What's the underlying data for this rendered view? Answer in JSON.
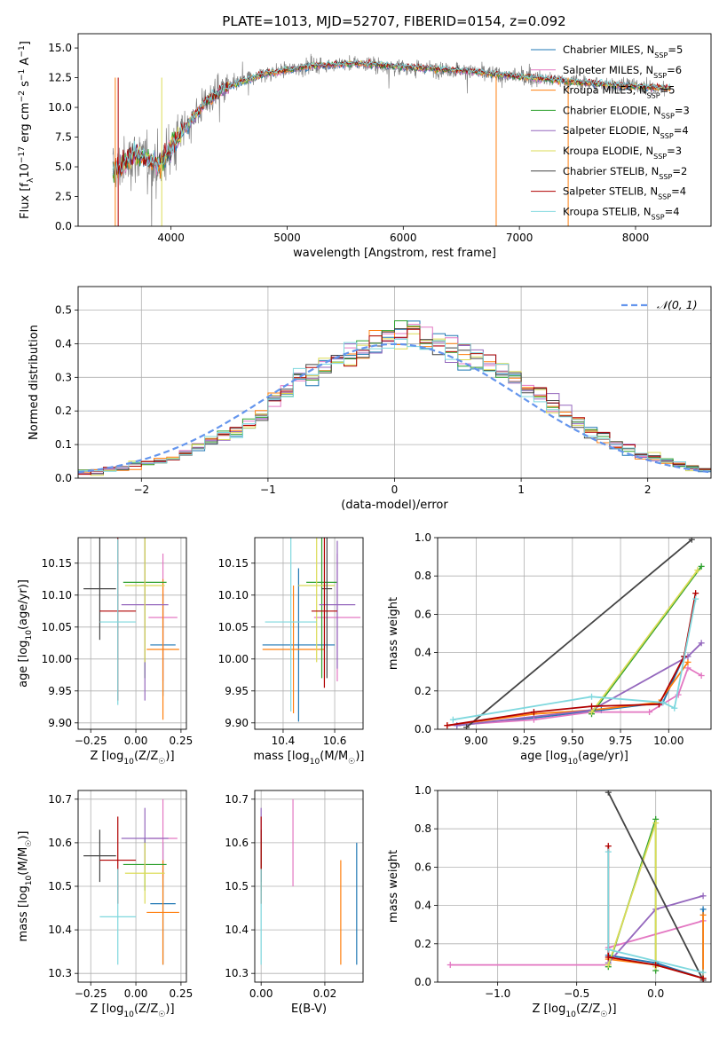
{
  "figure_title": "PLATE=1013, MJD=52707, FIBERID=0154, z=0.092",
  "colors": {
    "chabrier_miles": "#1f77b4",
    "salpeter_miles": "#e377c2",
    "kroupa_miles": "#ff7f0e",
    "chabrier_elodie": "#2ca02c",
    "salpeter_elodie": "#9467bd",
    "kroupa_elodie": "#dbdb56",
    "chabrier_stelib": "#444444",
    "salpeter_stelib": "#b00000",
    "kroupa_stelib": "#7fd8de",
    "data": "#808080",
    "normal": "#6495ed"
  },
  "chart_data": [
    {
      "type": "line",
      "title": "PLATE=1013, MJD=52707, FIBERID=0154, z=0.092",
      "xlabel": "wavelength [Angstrom, rest frame]",
      "ylabel": "Flux [f_λ 10^-17 erg cm^-2 s^-1 A^-1]",
      "xlim": [
        3200,
        8650
      ],
      "ylim": [
        0,
        16.2
      ],
      "xticks": [
        4000,
        5000,
        6000,
        7000,
        8000
      ],
      "yticks": [
        0.0,
        2.5,
        5.0,
        7.5,
        10.0,
        12.5,
        15.0
      ],
      "legend": [
        "Chabrier MILES, N_SSP=5",
        "Salpeter MILES, N_SSP=6",
        "Kroupa MILES, N_SSP=5",
        "Chabrier ELODIE, N_SSP=3",
        "Salpeter ELODIE, N_SSP=4",
        "Kroupa ELODIE, N_SSP=3",
        "Chabrier STELIB, N_SSP=2",
        "Salpeter STELIB, N_SSP=4",
        "Kroupa STELIB, N_SSP=4"
      ],
      "legend_position": "right",
      "spectrum_continuum": {
        "wavelength": [
          3500,
          3700,
          3900,
          4100,
          4300,
          4500,
          4800,
          5200,
          5600,
          6000,
          6500,
          7000,
          7400,
          7800,
          8300
        ],
        "flux": [
          4.6,
          6.0,
          5.2,
          8.0,
          10.5,
          11.8,
          12.8,
          13.5,
          13.7,
          13.4,
          13.1,
          12.6,
          12.2,
          11.9,
          11.6
        ]
      }
    },
    {
      "type": "line",
      "xlabel": "(data-model)/error",
      "ylabel": "Normed distribution",
      "xlim": [
        -2.5,
        2.5
      ],
      "ylim": [
        0,
        0.57
      ],
      "xticks": [
        -2,
        -1,
        0,
        1,
        2
      ],
      "yticks": [
        0.0,
        0.1,
        0.2,
        0.3,
        0.4,
        0.5
      ],
      "legend": [
        "N(0,1)"
      ],
      "bin_edges": [
        -2.5,
        -2.4,
        -2.3,
        -2.2,
        -2.1,
        -2.0,
        -1.9,
        -1.8,
        -1.7,
        -1.6,
        -1.5,
        -1.4,
        -1.3,
        -1.2,
        -1.1,
        -1.0,
        -0.9,
        -0.8,
        -0.7,
        -0.6,
        -0.5,
        -0.4,
        -0.3,
        -0.2,
        -0.1,
        0.0,
        0.1,
        0.2,
        0.3,
        0.4,
        0.5,
        0.6,
        0.7,
        0.8,
        0.9,
        1.0,
        1.1,
        1.2,
        1.3,
        1.4,
        1.5,
        1.6,
        1.7,
        1.8,
        1.9,
        2.0,
        2.1,
        2.2,
        2.3,
        2.4,
        2.5
      ],
      "histogram_mean": [
        0.02,
        0.02,
        0.025,
        0.03,
        0.04,
        0.045,
        0.05,
        0.06,
        0.075,
        0.095,
        0.11,
        0.125,
        0.14,
        0.16,
        0.185,
        0.23,
        0.26,
        0.3,
        0.31,
        0.33,
        0.35,
        0.37,
        0.38,
        0.39,
        0.41,
        0.43,
        0.44,
        0.42,
        0.41,
        0.39,
        0.37,
        0.36,
        0.34,
        0.32,
        0.3,
        0.27,
        0.25,
        0.22,
        0.19,
        0.165,
        0.14,
        0.12,
        0.1,
        0.085,
        0.07,
        0.06,
        0.05,
        0.04,
        0.03,
        0.025
      ]
    },
    {
      "type": "scatter",
      "xlabel": "Z [log10(Z/Z☉)]",
      "ylabel": "age [log10(age/yr)]",
      "xlim": [
        -0.32,
        0.28
      ],
      "ylim": [
        9.89,
        10.19
      ],
      "xticks": [
        -0.25,
        0.0,
        0.25
      ],
      "yticks": [
        9.9,
        9.95,
        10.0,
        10.05,
        10.1,
        10.15
      ],
      "points": [
        {
          "series": "Chabrier MILES",
          "x": 0.15,
          "xerr": 0.07,
          "y": 10.022,
          "yerr": 0.08
        },
        {
          "series": "Salpeter MILES",
          "x": 0.15,
          "xerr": 0.08,
          "y": 10.065,
          "yerr": 0.1
        },
        {
          "series": "Kroupa MILES",
          "x": 0.15,
          "xerr": 0.09,
          "y": 10.015,
          "yerr": 0.11
        },
        {
          "series": "Chabrier ELODIE",
          "x": 0.05,
          "xerr": 0.12,
          "y": 10.12,
          "yerr": 0.15
        },
        {
          "series": "Salpeter ELODIE",
          "x": 0.05,
          "xerr": 0.13,
          "y": 10.085,
          "yerr": 0.15
        },
        {
          "series": "Kroupa ELODIE",
          "x": 0.05,
          "xerr": 0.11,
          "y": 10.115,
          "yerr": 0.12
        },
        {
          "series": "Chabrier STELIB",
          "x": -0.2,
          "xerr": 0.09,
          "y": 10.11,
          "yerr": 0.08
        },
        {
          "series": "Salpeter STELIB",
          "x": -0.1,
          "xerr": 0.1,
          "y": 10.075,
          "yerr": 0.14
        },
        {
          "series": "Kroupa STELIB",
          "x": -0.1,
          "xerr": 0.1,
          "y": 10.058,
          "yerr": 0.13
        }
      ]
    },
    {
      "type": "scatter",
      "xlabel": "mass [log10(M/M☉)]",
      "ylabel": "",
      "xlim": [
        10.29,
        10.71
      ],
      "ylim": [
        9.89,
        10.19
      ],
      "xticks": [
        10.4,
        10.6
      ],
      "yticks": [
        9.9,
        9.95,
        10.0,
        10.05,
        10.1,
        10.15
      ],
      "points": [
        {
          "series": "Chabrier MILES",
          "x": 10.46,
          "xerr": 0.14,
          "y": 10.022,
          "yerr": 0.12
        },
        {
          "series": "Salpeter MILES",
          "x": 10.61,
          "xerr": 0.09,
          "y": 10.065,
          "yerr": 0.1
        },
        {
          "series": "Kroupa MILES",
          "x": 10.44,
          "xerr": 0.12,
          "y": 10.015,
          "yerr": 0.1
        },
        {
          "series": "Chabrier ELODIE",
          "x": 10.55,
          "xerr": 0.06,
          "y": 10.12,
          "yerr": 0.15
        },
        {
          "series": "Salpeter ELODIE",
          "x": 10.61,
          "xerr": 0.07,
          "y": 10.085,
          "yerr": 0.1
        },
        {
          "series": "Kroupa ELODIE",
          "x": 10.53,
          "xerr": 0.07,
          "y": 10.115,
          "yerr": 0.12
        },
        {
          "series": "Chabrier STELIB",
          "x": 10.57,
          "xerr": 0.02,
          "y": 10.11,
          "yerr": 0.14
        },
        {
          "series": "Salpeter STELIB",
          "x": 10.56,
          "xerr": 0.05,
          "y": 10.075,
          "yerr": 0.12
        },
        {
          "series": "Kroupa STELIB",
          "x": 10.43,
          "xerr": 0.1,
          "y": 10.058,
          "yerr": 0.14
        }
      ]
    },
    {
      "type": "line",
      "xlabel": "age [log10(age/yr)]",
      "ylabel": "mass weight",
      "xlim": [
        8.8,
        10.22
      ],
      "ylim": [
        0,
        1.0
      ],
      "xticks": [
        9.0,
        9.25,
        9.5,
        9.75,
        10.0
      ],
      "yticks": [
        0.0,
        0.2,
        0.4,
        0.6,
        0.8,
        1.0
      ],
      "series": [
        {
          "name": "Chabrier MILES",
          "x": [
            8.9,
            9.3,
            9.65,
            9.97,
            10.08
          ],
          "y": [
            0.02,
            0.06,
            0.1,
            0.14,
            0.38
          ]
        },
        {
          "name": "Salpeter MILES",
          "x": [
            8.85,
            9.3,
            9.6,
            9.9,
            10.05,
            10.1,
            10.17
          ],
          "y": [
            0.02,
            0.05,
            0.09,
            0.09,
            0.18,
            0.32,
            0.28
          ]
        },
        {
          "name": "Kroupa MILES",
          "x": [
            8.85,
            9.3,
            9.6,
            9.95,
            10.1
          ],
          "y": [
            0.02,
            0.08,
            0.1,
            0.14,
            0.35
          ]
        },
        {
          "name": "Chabrier ELODIE",
          "x": [
            9.6,
            10.17
          ],
          "y": [
            0.08,
            0.85
          ]
        },
        {
          "name": "Salpeter ELODIE",
          "x": [
            8.9,
            9.6,
            10.1,
            10.17
          ],
          "y": [
            0.02,
            0.1,
            0.38,
            0.45
          ]
        },
        {
          "name": "Kroupa ELODIE",
          "x": [
            9.6,
            10.15
          ],
          "y": [
            0.09,
            0.83
          ]
        },
        {
          "name": "Chabrier STELIB",
          "x": [
            8.95,
            10.12
          ],
          "y": [
            0.01,
            0.99
          ]
        },
        {
          "name": "Salpeter STELIB",
          "x": [
            8.85,
            9.3,
            9.6,
            9.95,
            10.08,
            10.14
          ],
          "y": [
            0.02,
            0.09,
            0.12,
            0.13,
            0.38,
            0.71
          ]
        },
        {
          "name": "Kroupa STELIB",
          "x": [
            8.88,
            9.6,
            9.97,
            10.03,
            10.14
          ],
          "y": [
            0.05,
            0.17,
            0.14,
            0.11,
            0.68
          ]
        }
      ]
    },
    {
      "type": "scatter",
      "xlabel": "Z [log10(Z/Z☉)]",
      "ylabel": "mass [log10(M/M☉)]",
      "xlim": [
        -0.32,
        0.28
      ],
      "ylim": [
        10.28,
        10.72
      ],
      "xticks": [
        -0.25,
        0.0,
        0.25
      ],
      "yticks": [
        10.3,
        10.4,
        10.5,
        10.6,
        10.7
      ],
      "points": [
        {
          "series": "Chabrier MILES",
          "x": 0.15,
          "xerr": 0.07,
          "y": 10.46,
          "yerr": 0.14
        },
        {
          "series": "Salpeter MILES",
          "x": 0.15,
          "xerr": 0.08,
          "y": 10.61,
          "yerr": 0.09
        },
        {
          "series": "Kroupa MILES",
          "x": 0.15,
          "xerr": 0.09,
          "y": 10.44,
          "yerr": 0.12
        },
        {
          "series": "Chabrier ELODIE",
          "x": 0.05,
          "xerr": 0.12,
          "y": 10.55,
          "yerr": 0.06
        },
        {
          "series": "Salpeter ELODIE",
          "x": 0.05,
          "xerr": 0.13,
          "y": 10.61,
          "yerr": 0.07
        },
        {
          "series": "Kroupa ELODIE",
          "x": 0.05,
          "xerr": 0.11,
          "y": 10.53,
          "yerr": 0.07
        },
        {
          "series": "Chabrier STELIB",
          "x": -0.2,
          "xerr": 0.09,
          "y": 10.57,
          "yerr": 0.06
        },
        {
          "series": "Salpeter STELIB",
          "x": -0.1,
          "xerr": 0.1,
          "y": 10.56,
          "yerr": 0.1
        },
        {
          "series": "Kroupa STELIB",
          "x": -0.1,
          "xerr": 0.1,
          "y": 10.43,
          "yerr": 0.11
        }
      ]
    },
    {
      "type": "scatter",
      "xlabel": "E(B-V)",
      "ylabel": "",
      "xlim": [
        -0.002,
        0.032
      ],
      "ylim": [
        10.28,
        10.72
      ],
      "xticks": [
        0.0,
        0.02
      ],
      "yticks": [
        10.3,
        10.4,
        10.5,
        10.6,
        10.7
      ],
      "points": [
        {
          "series": "Chabrier MILES",
          "x": 0.03,
          "y": 10.46,
          "yerr": 0.14
        },
        {
          "series": "Salpeter MILES",
          "x": 0.01,
          "y": 10.6,
          "yerr": 0.1
        },
        {
          "series": "Kroupa MILES",
          "x": 0.025,
          "y": 10.44,
          "yerr": 0.12
        },
        {
          "series": "Chabrier ELODIE",
          "x": 0.0,
          "y": 10.55,
          "yerr": 0.06
        },
        {
          "series": "Salpeter ELODIE",
          "x": 0.0,
          "y": 10.61,
          "yerr": 0.07
        },
        {
          "series": "Kroupa ELODIE",
          "x": 0.0,
          "y": 10.53,
          "yerr": 0.07
        },
        {
          "series": "Chabrier STELIB",
          "x": 0.0,
          "y": 10.57,
          "yerr": 0.06
        },
        {
          "series": "Salpeter STELIB",
          "x": 0.0,
          "y": 10.56,
          "yerr": 0.1
        },
        {
          "series": "Kroupa STELIB",
          "x": 0.0,
          "y": 10.43,
          "yerr": 0.11
        }
      ]
    },
    {
      "type": "line",
      "xlabel": "Z [log10(Z/Z☉)]",
      "ylabel": "mass weight",
      "xlim": [
        -1.38,
        0.35
      ],
      "ylim": [
        0,
        1.0
      ],
      "xticks": [
        -1.0,
        -0.5,
        0.0
      ],
      "yticks": [
        0.0,
        0.2,
        0.4,
        0.6,
        0.8,
        1.0
      ],
      "series": [
        {
          "name": "Chabrier MILES",
          "x": [
            -0.3,
            0.0,
            0.3,
            0.3
          ],
          "y": [
            0.14,
            0.1,
            0.02,
            0.38
          ]
        },
        {
          "name": "Salpeter MILES",
          "x": [
            -1.3,
            -0.3,
            -0.3,
            0.3
          ],
          "y": [
            0.09,
            0.09,
            0.18,
            0.32
          ]
        },
        {
          "name": "Kroupa MILES",
          "x": [
            -0.3,
            0.0,
            0.3,
            0.3
          ],
          "y": [
            0.12,
            0.09,
            0.02,
            0.35
          ]
        },
        {
          "name": "Chabrier ELODIE",
          "x": [
            -0.3,
            0.0,
            0.0
          ],
          "y": [
            0.08,
            0.85,
            0.06
          ]
        },
        {
          "name": "Salpeter ELODIE",
          "x": [
            -0.3,
            0.0,
            0.3
          ],
          "y": [
            0.1,
            0.38,
            0.45
          ]
        },
        {
          "name": "Kroupa ELODIE",
          "x": [
            -0.3,
            0.0,
            0.0
          ],
          "y": [
            0.09,
            0.83,
            0.08
          ]
        },
        {
          "name": "Chabrier STELIB",
          "x": [
            -0.3,
            0.3
          ],
          "y": [
            0.99,
            0.01
          ]
        },
        {
          "name": "Salpeter STELIB",
          "x": [
            -0.3,
            -0.3,
            0.0,
            0.3
          ],
          "y": [
            0.71,
            0.13,
            0.09,
            0.02
          ]
        },
        {
          "name": "Kroupa STELIB",
          "x": [
            -0.3,
            -0.3,
            0.3
          ],
          "y": [
            0.68,
            0.17,
            0.05
          ]
        }
      ]
    }
  ]
}
